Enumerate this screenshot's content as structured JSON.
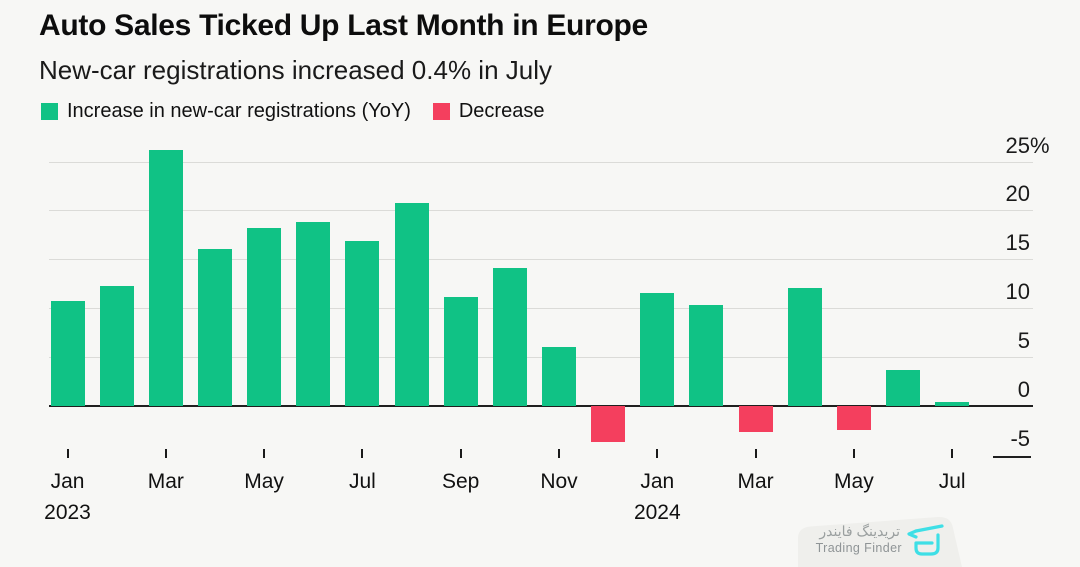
{
  "title": "Auto Sales Ticked Up Last Month in Europe",
  "subtitle": "New-car registrations increased 0.4% in July",
  "legend": [
    {
      "label": "Increase in new-car registrations (YoY)",
      "color": "#10c285"
    },
    {
      "label": "Decrease",
      "color": "#f43f5e"
    }
  ],
  "colors": {
    "increase": "#10c285",
    "decrease": "#f43f5e",
    "background": "#f7f7f5",
    "gridline": "#dbdbd8",
    "zero_line": "#1f1f1f",
    "watermark_logo": "#3edfe6"
  },
  "chart_data": {
    "type": "bar",
    "x": [
      "Jan 2023",
      "Feb 2023",
      "Mar 2023",
      "Apr 2023",
      "May 2023",
      "Jun 2023",
      "Jul 2023",
      "Aug 2023",
      "Sep 2023",
      "Oct 2023",
      "Nov 2023",
      "Dec 2023",
      "Jan 2024",
      "Feb 2024",
      "Mar 2024",
      "Apr 2024",
      "May 2024",
      "Jun 2024",
      "Jul 2024"
    ],
    "values": [
      10.7,
      12.3,
      26.2,
      16.1,
      18.2,
      18.8,
      16.9,
      20.8,
      11.1,
      14.1,
      6.0,
      -3.7,
      11.6,
      10.3,
      -2.7,
      12.1,
      -2.5,
      3.7,
      0.4
    ],
    "series_note": "green = increase YoY, red = decrease",
    "title": "Auto Sales Ticked Up Last Month in Europe",
    "xlabel": "",
    "ylabel": "",
    "ylim": [
      -6.5,
      27
    ],
    "grid": true,
    "legend_position": "top",
    "yticks": [
      {
        "value": 25,
        "label": "25",
        "suffix": "%"
      },
      {
        "value": 20,
        "label": "20",
        "suffix": ""
      },
      {
        "value": 15,
        "label": "15",
        "suffix": ""
      },
      {
        "value": 10,
        "label": "10",
        "suffix": ""
      },
      {
        "value": 5,
        "label": "5",
        "suffix": ""
      },
      {
        "value": 0,
        "label": "0",
        "suffix": ""
      },
      {
        "value": -5,
        "label": "-5",
        "suffix": ""
      }
    ],
    "xticks": [
      {
        "index": 0,
        "label": "Jan",
        "year": "2023"
      },
      {
        "index": 2,
        "label": "Mar"
      },
      {
        "index": 4,
        "label": "May"
      },
      {
        "index": 6,
        "label": "Jul"
      },
      {
        "index": 8,
        "label": "Sep"
      },
      {
        "index": 10,
        "label": "Nov"
      },
      {
        "index": 12,
        "label": "Jan",
        "year": "2024"
      },
      {
        "index": 14,
        "label": "Mar"
      },
      {
        "index": 16,
        "label": "May"
      },
      {
        "index": 18,
        "label": "Jul"
      }
    ]
  },
  "watermark": {
    "brand_fa": "تریدینگ فایندر",
    "brand_en": "Trading Finder"
  }
}
